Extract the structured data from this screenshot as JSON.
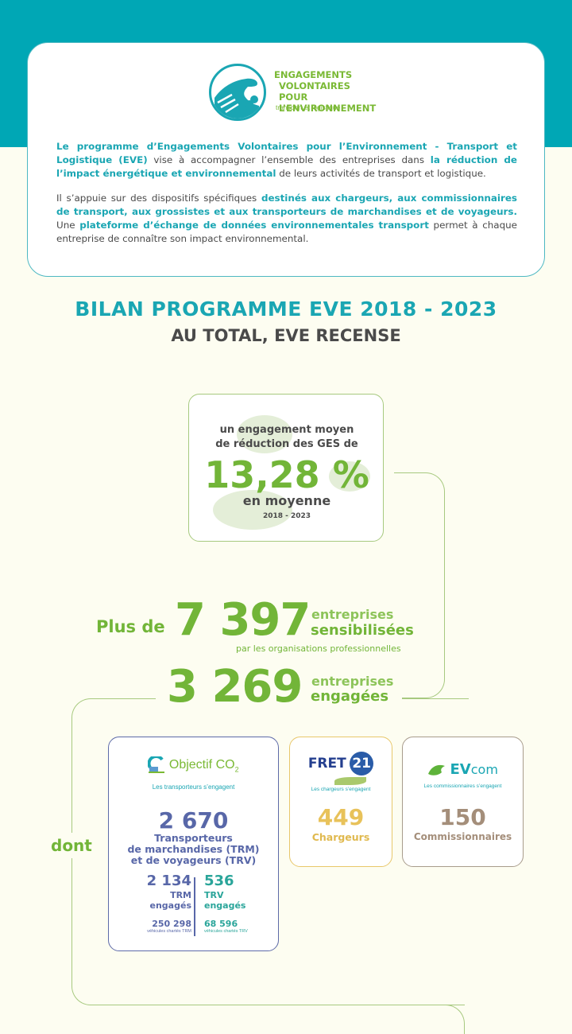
{
  "header": {
    "logo": {
      "lines": [
        "ENGAGEMENTS",
        "VOLONTAIRES POUR",
        "L’ENVIRONNEMENT"
      ],
      "subtitle": "transport et logistique",
      "icon": "handshake-icon"
    },
    "intro": {
      "p1": [
        {
          "t": "Le programme d’Engagements Volontaires pour l’Environnement - Transport et Logistique (EVE)",
          "b": true
        },
        {
          "t": " vise à accompagner l’ensemble des entreprises dans ",
          "b": false
        },
        {
          "t": "la réduction de l’impact énergétique et environnemental",
          "b": true
        },
        {
          "t": " de leurs activités de transport et logistique.",
          "b": false
        }
      ],
      "p2": [
        {
          "t": "Il s’appuie sur des dispositifs spécifiques ",
          "b": false
        },
        {
          "t": "destinés aux chargeurs, aux commissionnaires de transport, aux grossistes et aux transporteurs de marchandises et de voyageurs.",
          "b": true
        },
        {
          "t": " Une ",
          "b": false
        },
        {
          "t": "plateforme d’échange de données environnementales transport",
          "b": true
        },
        {
          "t": " permet à chaque entreprise de connaître son impact environnemental.",
          "b": false
        }
      ]
    }
  },
  "titles": {
    "main": "BILAN PROGRAMME EVE 2018 - 2023",
    "sub": "AU TOTAL, EVE RECENSE"
  },
  "ges": {
    "line1": "un engagement moyen",
    "line2": "de réduction des GES de",
    "value": "13,28 %",
    "suffix": "en moyenne",
    "years": "2018 - 2023"
  },
  "stats": {
    "sensibilisees": {
      "prefix": "Plus de",
      "value": "7 397",
      "label1": "entreprises",
      "label2": "sensibilisées",
      "note": "par les organisations professionnelles"
    },
    "engagees": {
      "value": "3 269",
      "label1": "entreprises",
      "label2": "engagées"
    },
    "dont": "dont"
  },
  "programs": {
    "objectif_co2": {
      "brand": "Objectif CO",
      "brand_sub": "2",
      "tagline": "Les transporteurs s’engagent",
      "value": "2 670",
      "desc": [
        "Transporteurs",
        "de marchandises (TRM)",
        "et de voyageurs (TRV)"
      ],
      "trm": {
        "value": "2 134",
        "label1": "TRM",
        "label2": "engagés",
        "vehicles": "250 298",
        "vehicles_label": "véhicules chartés TRM"
      },
      "trv": {
        "value": "536",
        "label1": "TRV",
        "label2": "engagés",
        "vehicles": "68 596",
        "vehicles_label": "véhicules chartés TRV"
      },
      "color": "#5867a8"
    },
    "fret21": {
      "brand": "FRET",
      "brand_num": "21",
      "tagline": "Les chargeurs s’engagent",
      "value": "449",
      "label": "Chargeurs",
      "color": "#e8c25a"
    },
    "evcom": {
      "brand_a": "EV",
      "brand_b": "com",
      "tagline": "Les commissionnaires s’engagent",
      "value": "150",
      "label": "Commissionnaires",
      "color": "#a48e7a"
    }
  },
  "colors": {
    "teal": "#00a7b5",
    "green": "#72b538",
    "background": "#fdfdf1"
  }
}
